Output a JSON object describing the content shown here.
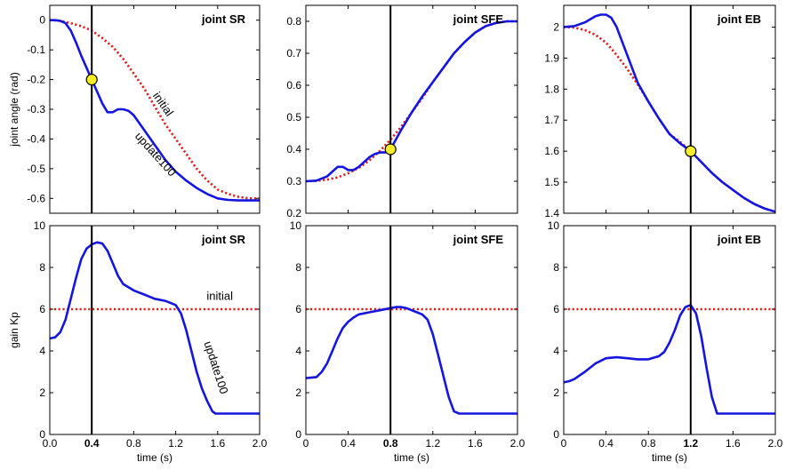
{
  "colors": {
    "update": "#1515e0",
    "initial": "#e02020",
    "marker_fill": "#f5ec2a",
    "marker_stroke": "#000000"
  },
  "chart_data": [
    {
      "type": "line",
      "row": 0,
      "col": 0,
      "title": "joint SR",
      "ylabel": "joint angle (rad)",
      "xlabel": "",
      "xlim": [
        0,
        2.0
      ],
      "ylim": [
        -0.65,
        0.05
      ],
      "xticks": [
        "0.0",
        "0.4",
        "0.8",
        "1.2",
        "1.6",
        "2.0"
      ],
      "show_xticklabels": false,
      "yticks": [
        0,
        -0.1,
        -0.2,
        -0.3,
        -0.4,
        -0.5,
        -0.6
      ],
      "vline": 0.4,
      "marker": [
        0.4,
        -0.2
      ],
      "annotations": [
        {
          "text": "initial",
          "x": 1.05,
          "y": -0.29,
          "rotate": 55
        },
        {
          "text": "update100",
          "x": 0.98,
          "y": -0.46,
          "rotate": 48
        }
      ],
      "series": [
        {
          "name": "initial",
          "style": "dotted",
          "x": [
            0,
            0.1,
            0.2,
            0.3,
            0.4,
            0.5,
            0.6,
            0.7,
            0.8,
            0.9,
            1.0,
            1.1,
            1.2,
            1.3,
            1.4,
            1.5,
            1.6,
            1.7,
            1.8,
            1.9,
            2.0
          ],
          "y": [
            0,
            -0.002,
            -0.01,
            -0.02,
            -0.035,
            -0.06,
            -0.09,
            -0.13,
            -0.18,
            -0.23,
            -0.29,
            -0.35,
            -0.4,
            -0.45,
            -0.5,
            -0.54,
            -0.57,
            -0.585,
            -0.595,
            -0.6,
            -0.6
          ]
        },
        {
          "name": "update100",
          "style": "solid",
          "x": [
            0,
            0.05,
            0.1,
            0.15,
            0.2,
            0.25,
            0.3,
            0.35,
            0.4,
            0.45,
            0.5,
            0.55,
            0.6,
            0.65,
            0.7,
            0.75,
            0.8,
            0.9,
            1.0,
            1.1,
            1.2,
            1.3,
            1.4,
            1.5,
            1.6,
            1.7,
            1.8,
            1.9,
            2.0
          ],
          "y": [
            0,
            0,
            -0.002,
            -0.01,
            -0.035,
            -0.075,
            -0.12,
            -0.16,
            -0.2,
            -0.24,
            -0.28,
            -0.31,
            -0.31,
            -0.3,
            -0.3,
            -0.305,
            -0.32,
            -0.37,
            -0.42,
            -0.47,
            -0.51,
            -0.54,
            -0.565,
            -0.585,
            -0.6,
            -0.605,
            -0.607,
            -0.607,
            -0.607
          ]
        }
      ]
    },
    {
      "type": "line",
      "row": 0,
      "col": 1,
      "title": "joint SFE",
      "ylabel": "",
      "xlabel": "",
      "xlim": [
        0,
        2.0
      ],
      "ylim": [
        0.2,
        0.85
      ],
      "xticks": [
        "0",
        "0.4",
        "0.8",
        "1.2",
        "1.6",
        "2.0"
      ],
      "show_xticklabels": false,
      "yticks": [
        0.2,
        0.3,
        0.4,
        0.5,
        0.6,
        0.7,
        0.8
      ],
      "vline": 0.8,
      "marker": [
        0.8,
        0.4
      ],
      "annotations": [],
      "series": [
        {
          "name": "initial",
          "style": "dotted",
          "x": [
            0,
            0.1,
            0.2,
            0.3,
            0.4,
            0.5,
            0.6,
            0.7,
            0.8,
            0.9,
            1.0,
            1.1,
            1.2,
            1.3,
            1.4,
            1.5,
            1.6,
            1.7,
            1.8,
            1.9,
            2.0
          ],
          "y": [
            0.3,
            0.301,
            0.305,
            0.312,
            0.325,
            0.342,
            0.365,
            0.395,
            0.43,
            0.47,
            0.515,
            0.56,
            0.61,
            0.655,
            0.7,
            0.735,
            0.765,
            0.785,
            0.795,
            0.8,
            0.8
          ]
        },
        {
          "name": "update100",
          "style": "solid",
          "x": [
            0,
            0.1,
            0.2,
            0.25,
            0.3,
            0.35,
            0.4,
            0.45,
            0.5,
            0.55,
            0.6,
            0.65,
            0.7,
            0.75,
            0.8,
            0.9,
            1.0,
            1.1,
            1.2,
            1.3,
            1.4,
            1.5,
            1.6,
            1.7,
            1.8,
            1.9,
            2.0
          ],
          "y": [
            0.3,
            0.302,
            0.315,
            0.33,
            0.345,
            0.345,
            0.335,
            0.335,
            0.345,
            0.36,
            0.375,
            0.385,
            0.39,
            0.39,
            0.4,
            0.46,
            0.515,
            0.565,
            0.61,
            0.655,
            0.7,
            0.735,
            0.765,
            0.785,
            0.795,
            0.8,
            0.8
          ]
        }
      ]
    },
    {
      "type": "line",
      "row": 0,
      "col": 2,
      "title": "joint EB",
      "ylabel": "",
      "xlabel": "",
      "xlim": [
        0,
        2.0
      ],
      "ylim": [
        1.4,
        2.07
      ],
      "xticks": [
        "0",
        "0.4",
        "0.8",
        "1.2",
        "1.6",
        "2.0"
      ],
      "show_xticklabels": false,
      "yticks": [
        1.4,
        1.5,
        1.6,
        1.7,
        1.8,
        1.9,
        2
      ],
      "vline": 1.2,
      "marker": [
        1.2,
        1.6
      ],
      "annotations": [],
      "series": [
        {
          "name": "initial",
          "style": "dotted",
          "x": [
            0,
            0.1,
            0.2,
            0.3,
            0.4,
            0.5,
            0.6,
            0.7,
            0.8,
            0.9,
            1.0,
            1.1,
            1.2,
            1.3,
            1.4,
            1.5,
            1.6,
            1.7,
            1.8,
            1.9,
            2.0
          ],
          "y": [
            2.0,
            1.998,
            1.99,
            1.975,
            1.95,
            1.91,
            1.865,
            1.815,
            1.76,
            1.705,
            1.655,
            1.63,
            1.6,
            1.565,
            1.53,
            1.5,
            1.475,
            1.45,
            1.43,
            1.415,
            1.405
          ]
        },
        {
          "name": "update100",
          "style": "solid",
          "x": [
            0,
            0.1,
            0.2,
            0.3,
            0.35,
            0.4,
            0.45,
            0.5,
            0.6,
            0.7,
            0.8,
            0.9,
            1.0,
            1.1,
            1.2,
            1.3,
            1.4,
            1.5,
            1.6,
            1.7,
            1.8,
            1.9,
            2.0
          ],
          "y": [
            2.0,
            2.003,
            2.015,
            2.035,
            2.04,
            2.04,
            2.03,
            2.0,
            1.91,
            1.82,
            1.76,
            1.705,
            1.655,
            1.625,
            1.6,
            1.565,
            1.53,
            1.5,
            1.475,
            1.45,
            1.43,
            1.415,
            1.405
          ]
        }
      ]
    },
    {
      "type": "line",
      "row": 1,
      "col": 0,
      "title": "joint SR",
      "ylabel": "gain Kp",
      "xlabel": "time (s)",
      "xlim": [
        0,
        2.0
      ],
      "ylim": [
        0,
        10
      ],
      "xticks": [
        "0.0",
        "0.4",
        "0.8",
        "1.2",
        "1.6",
        "2.0"
      ],
      "show_xticklabels": true,
      "bold_tick": "0.4",
      "yticks": [
        0,
        2,
        4,
        6,
        8,
        10
      ],
      "vline": 0.4,
      "marker": null,
      "annotations": [
        {
          "text": "initial",
          "x": 1.62,
          "y": 6.45,
          "rotate": 0
        },
        {
          "text": "update100",
          "x": 1.55,
          "y": 3.15,
          "rotate": 72
        }
      ],
      "series": [
        {
          "name": "initial",
          "style": "dotted",
          "x": [
            0,
            2.0
          ],
          "y": [
            6,
            6
          ]
        },
        {
          "name": "update100",
          "style": "solid",
          "x": [
            0,
            0.05,
            0.1,
            0.15,
            0.2,
            0.25,
            0.3,
            0.35,
            0.4,
            0.45,
            0.5,
            0.55,
            0.6,
            0.65,
            0.7,
            0.8,
            0.9,
            1.0,
            1.1,
            1.2,
            1.25,
            1.3,
            1.35,
            1.4,
            1.45,
            1.5,
            1.55,
            1.58,
            1.6,
            1.7,
            1.8,
            1.9,
            2.0
          ],
          "y": [
            4.6,
            4.65,
            4.9,
            5.5,
            6.5,
            7.5,
            8.4,
            8.9,
            9.1,
            9.2,
            9.15,
            8.8,
            8.2,
            7.6,
            7.2,
            6.9,
            6.7,
            6.5,
            6.4,
            6.2,
            5.8,
            5.0,
            4.0,
            3.0,
            2.2,
            1.6,
            1.1,
            1.0,
            1.0,
            1.0,
            1.0,
            1.0,
            1.0
          ]
        }
      ]
    },
    {
      "type": "line",
      "row": 1,
      "col": 1,
      "title": "joint SFE",
      "ylabel": "",
      "xlabel": "time (s)",
      "xlim": [
        0,
        2.0
      ],
      "ylim": [
        0,
        10
      ],
      "xticks": [
        "0",
        "0.4",
        "0.8",
        "1.2",
        "1.6",
        "2.0"
      ],
      "show_xticklabels": true,
      "bold_tick": "0.8",
      "yticks": [
        0,
        2,
        4,
        6,
        8,
        10
      ],
      "vline": 0.8,
      "marker": null,
      "annotations": [],
      "series": [
        {
          "name": "initial",
          "style": "dotted",
          "x": [
            0,
            2.0
          ],
          "y": [
            6,
            6
          ]
        },
        {
          "name": "update100",
          "style": "solid",
          "x": [
            0,
            0.1,
            0.15,
            0.2,
            0.25,
            0.3,
            0.35,
            0.4,
            0.45,
            0.5,
            0.55,
            0.6,
            0.7,
            0.8,
            0.85,
            0.9,
            0.95,
            1.0,
            1.05,
            1.1,
            1.15,
            1.2,
            1.25,
            1.3,
            1.35,
            1.4,
            1.45,
            1.5,
            1.6,
            1.7,
            1.8,
            1.9,
            2.0
          ],
          "y": [
            2.7,
            2.75,
            3.0,
            3.4,
            4.0,
            4.6,
            5.1,
            5.4,
            5.6,
            5.75,
            5.8,
            5.85,
            5.95,
            6.05,
            6.1,
            6.1,
            6.05,
            5.95,
            5.85,
            5.75,
            5.5,
            4.8,
            3.8,
            2.8,
            1.8,
            1.1,
            1.0,
            1.0,
            1.0,
            1.0,
            1.0,
            1.0,
            1.0
          ]
        }
      ]
    },
    {
      "type": "line",
      "row": 1,
      "col": 2,
      "title": "joint EB",
      "ylabel": "",
      "xlabel": "time (s)",
      "xlim": [
        0,
        2.0
      ],
      "ylim": [
        0,
        10
      ],
      "xticks": [
        "0",
        "0.4",
        "0.8",
        "1.2",
        "1.6",
        "2.0"
      ],
      "show_xticklabels": true,
      "bold_tick": "1.2",
      "yticks": [
        0,
        2,
        4,
        6,
        8,
        10
      ],
      "vline": 1.2,
      "marker": null,
      "annotations": [],
      "series": [
        {
          "name": "initial",
          "style": "dotted",
          "x": [
            0,
            2.0
          ],
          "y": [
            6,
            6
          ]
        },
        {
          "name": "update100",
          "style": "solid",
          "x": [
            0,
            0.05,
            0.1,
            0.2,
            0.3,
            0.4,
            0.5,
            0.6,
            0.7,
            0.8,
            0.9,
            0.95,
            1.0,
            1.05,
            1.1,
            1.15,
            1.2,
            1.25,
            1.3,
            1.35,
            1.4,
            1.45,
            1.5,
            1.6,
            1.7,
            1.8,
            1.9,
            2.0
          ],
          "y": [
            2.5,
            2.55,
            2.65,
            3.0,
            3.4,
            3.65,
            3.7,
            3.65,
            3.6,
            3.6,
            3.75,
            3.95,
            4.4,
            5.0,
            5.7,
            6.1,
            6.2,
            5.8,
            4.7,
            3.2,
            1.8,
            1.0,
            1.0,
            1.0,
            1.0,
            1.0,
            1.0,
            1.0
          ]
        }
      ]
    }
  ]
}
